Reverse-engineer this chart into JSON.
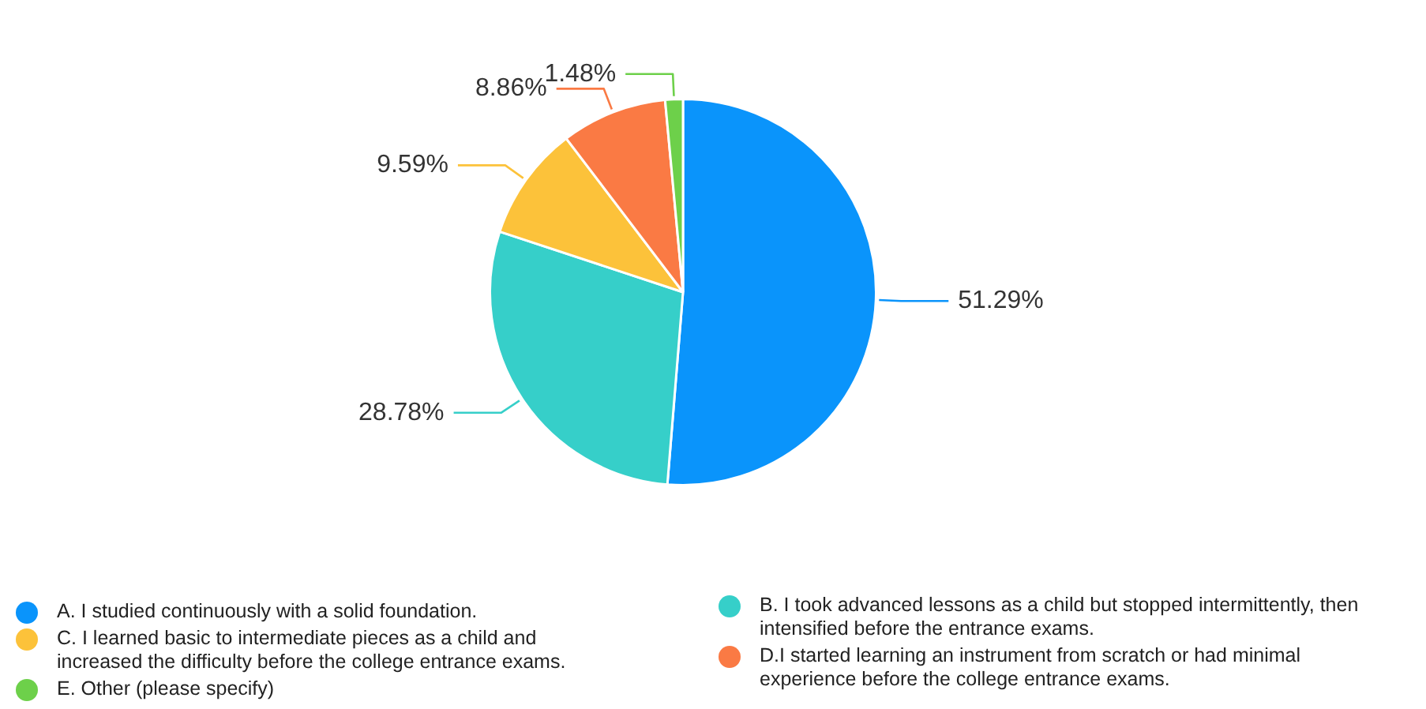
{
  "chart_data": {
    "type": "pie",
    "categories": [
      "A. I studied continuously with a solid foundation.",
      "B. I took advanced lessons as a child but stopped intermittently, then intensified before the entrance exams.",
      "C. I learned basic to intermediate pieces as a child and increased the difficulty before the college entrance exams.",
      "D.I started learning an instrument from scratch or had minimal experience before the college entrance exams.",
      "E. Other (please specify)"
    ],
    "values": [
      51.29,
      28.78,
      9.59,
      8.86,
      1.48
    ],
    "colors": [
      "#0a94fb",
      "#36cfc9",
      "#fcc23a",
      "#fa7a44",
      "#6dd04a"
    ],
    "value_labels": [
      "51.29%",
      "28.78%",
      "9.59%",
      "8.86%",
      "1.48%"
    ],
    "legend": "bottom"
  }
}
